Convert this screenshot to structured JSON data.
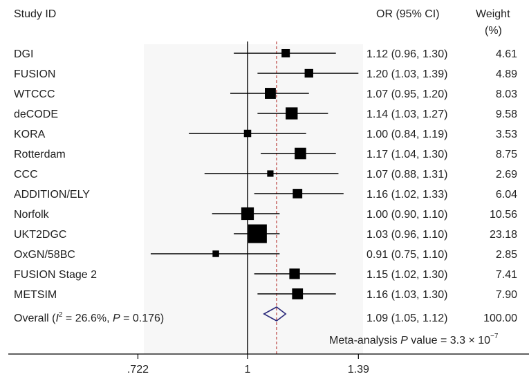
{
  "chart_data": {
    "type": "forest",
    "headers": {
      "study": "Study ID",
      "or": "OR (95% CI)",
      "weight_line1": "Weight",
      "weight_line2": "(%)"
    },
    "x_scale": "log",
    "xlim": [
      0.722,
      1.39
    ],
    "xticks": [
      0.722,
      1,
      1.39
    ],
    "xtick_labels": [
      ".722",
      "1",
      "1.39"
    ],
    "null_line": 1,
    "overall_line": 1.09,
    "studies": [
      {
        "name": "DGI",
        "or": 1.12,
        "lo": 0.96,
        "hi": 1.3,
        "ci_text": "1.12 (0.96, 1.30)",
        "weight": 4.61,
        "weight_text": "4.61"
      },
      {
        "name": "FUSION",
        "or": 1.2,
        "lo": 1.03,
        "hi": 1.39,
        "ci_text": "1.20 (1.03, 1.39)",
        "weight": 4.89,
        "weight_text": "4.89"
      },
      {
        "name": "WTCCC",
        "or": 1.07,
        "lo": 0.95,
        "hi": 1.2,
        "ci_text": "1.07 (0.95, 1.20)",
        "weight": 8.03,
        "weight_text": "8.03"
      },
      {
        "name": "deCODE",
        "or": 1.14,
        "lo": 1.03,
        "hi": 1.27,
        "ci_text": "1.14 (1.03, 1.27)",
        "weight": 9.58,
        "weight_text": "9.58"
      },
      {
        "name": "KORA",
        "or": 1.0,
        "lo": 0.84,
        "hi": 1.19,
        "ci_text": "1.00 (0.84, 1.19)",
        "weight": 3.53,
        "weight_text": "3.53"
      },
      {
        "name": "Rotterdam",
        "or": 1.17,
        "lo": 1.04,
        "hi": 1.3,
        "ci_text": "1.17 (1.04, 1.30)",
        "weight": 8.75,
        "weight_text": "8.75"
      },
      {
        "name": "CCC",
        "or": 1.07,
        "lo": 0.88,
        "hi": 1.31,
        "ci_text": "1.07 (0.88, 1.31)",
        "weight": 2.69,
        "weight_text": "2.69"
      },
      {
        "name": "ADDITION/ELY",
        "or": 1.16,
        "lo": 1.02,
        "hi": 1.33,
        "ci_text": "1.16 (1.02, 1.33)",
        "weight": 6.04,
        "weight_text": "6.04"
      },
      {
        "name": "Norfolk",
        "or": 1.0,
        "lo": 0.9,
        "hi": 1.1,
        "ci_text": "1.00 (0.90, 1.10)",
        "weight": 10.56,
        "weight_text": "10.56"
      },
      {
        "name": "UKT2DGC",
        "or": 1.03,
        "lo": 0.96,
        "hi": 1.1,
        "ci_text": "1.03 (0.96, 1.10)",
        "weight": 23.18,
        "weight_text": "23.18"
      },
      {
        "name": "OxGN/58BC",
        "or": 0.91,
        "lo": 0.75,
        "hi": 1.1,
        "ci_text": "0.91 (0.75, 1.10)",
        "weight": 2.85,
        "weight_text": "2.85"
      },
      {
        "name": "FUSION Stage 2",
        "or": 1.15,
        "lo": 1.02,
        "hi": 1.3,
        "ci_text": "1.15 (1.02, 1.30)",
        "weight": 7.41,
        "weight_text": "7.41"
      },
      {
        "name": "METSIM",
        "or": 1.16,
        "lo": 1.03,
        "hi": 1.3,
        "ci_text": "1.16 (1.03, 1.30)",
        "weight": 7.9,
        "weight_text": "7.90"
      }
    ],
    "overall": {
      "label_prefix": "Overall (",
      "label_i": "I",
      "label_sup": "2",
      "label_mid": " = 26.6%, ",
      "label_p": "P",
      "label_suffix": " = 0.176)",
      "or": 1.09,
      "lo": 1.05,
      "hi": 1.12,
      "ci_text": "1.09 (1.05, 1.12)",
      "weight_text": "100.00"
    },
    "meta_p": {
      "prefix": "Meta-analysis ",
      "p": "P",
      "mid": " value = 3.3 × 10",
      "exp": "−7"
    },
    "colors": {
      "marker": "#000000",
      "ci_line": "#000000",
      "null_line": "#000000",
      "overall_line": "#c0504d",
      "diamond": "#2b2a7a",
      "plot_bg": "#f7f7f7"
    }
  }
}
